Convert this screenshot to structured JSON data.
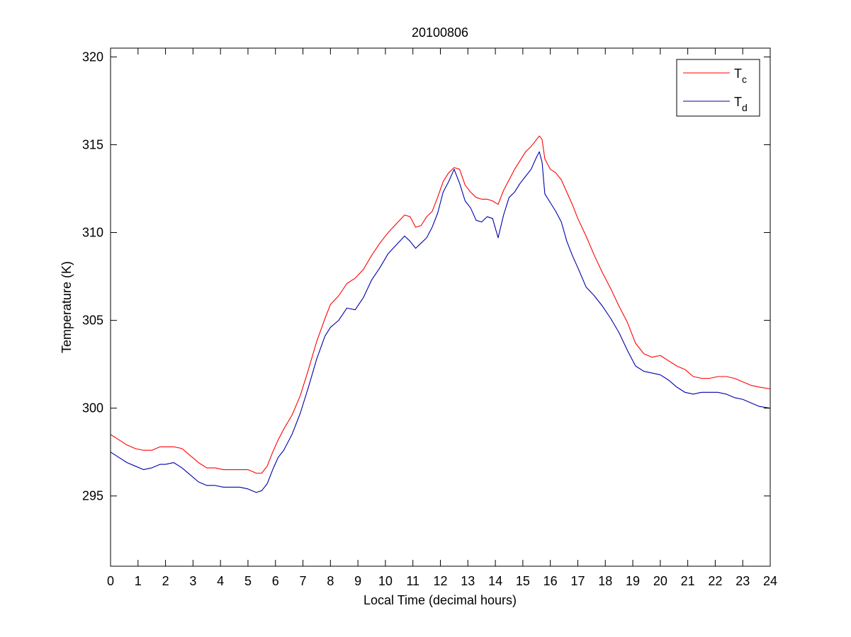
{
  "chart_data": {
    "type": "line",
    "title": "20100806",
    "xlabel": "Local Time (decimal hours)",
    "ylabel": "Temperature (K)",
    "xlim": [
      0,
      24
    ],
    "ylim": [
      291,
      320.5
    ],
    "xticks": [
      0,
      1,
      2,
      3,
      4,
      5,
      6,
      7,
      8,
      9,
      10,
      11,
      12,
      13,
      14,
      15,
      16,
      17,
      18,
      19,
      20,
      21,
      22,
      23,
      24
    ],
    "yticks": [
      295,
      300,
      305,
      310,
      315,
      320
    ],
    "grid": false,
    "legend": "top-right",
    "series": [
      {
        "name": "T",
        "subscript": "c",
        "color": "#ff0000",
        "x": [
          0,
          0.3,
          0.6,
          0.9,
          1.2,
          1.5,
          1.8,
          2.0,
          2.3,
          2.6,
          2.9,
          3.2,
          3.5,
          3.8,
          4.1,
          4.4,
          4.7,
          5.0,
          5.3,
          5.5,
          5.7,
          5.9,
          6.1,
          6.3,
          6.6,
          6.9,
          7.2,
          7.5,
          7.8,
          8.0,
          8.3,
          8.6,
          8.9,
          9.2,
          9.5,
          9.8,
          10.1,
          10.4,
          10.7,
          10.9,
          11.1,
          11.3,
          11.5,
          11.7,
          11.9,
          12.1,
          12.3,
          12.5,
          12.7,
          12.9,
          13.1,
          13.3,
          13.5,
          13.7,
          13.9,
          14.1,
          14.3,
          14.5,
          14.7,
          14.9,
          15.1,
          15.3,
          15.5,
          15.6,
          15.7,
          15.8,
          16.0,
          16.2,
          16.4,
          16.6,
          16.8,
          17.0,
          17.3,
          17.6,
          17.9,
          18.2,
          18.5,
          18.8,
          19.1,
          19.4,
          19.7,
          20.0,
          20.3,
          20.6,
          20.9,
          21.2,
          21.5,
          21.8,
          22.1,
          22.4,
          22.7,
          23.0,
          23.3,
          23.6,
          24.0
        ],
        "y": [
          298.5,
          298.2,
          297.9,
          297.7,
          297.6,
          297.6,
          297.8,
          297.8,
          297.8,
          297.7,
          297.3,
          296.9,
          296.6,
          296.6,
          296.5,
          296.5,
          296.5,
          296.5,
          296.3,
          296.3,
          296.7,
          297.5,
          298.2,
          298.8,
          299.6,
          300.7,
          302.2,
          303.8,
          305.1,
          305.9,
          306.4,
          307.1,
          307.4,
          307.9,
          308.7,
          309.4,
          310.0,
          310.5,
          311.0,
          310.9,
          310.3,
          310.4,
          310.9,
          311.2,
          312.0,
          312.9,
          313.4,
          313.7,
          313.6,
          312.7,
          312.3,
          312.0,
          311.9,
          311.9,
          311.8,
          311.6,
          312.4,
          313.0,
          313.6,
          314.1,
          314.6,
          314.9,
          315.3,
          315.5,
          315.3,
          314.2,
          313.6,
          313.4,
          313.0,
          312.3,
          311.6,
          310.8,
          309.8,
          308.7,
          307.7,
          306.8,
          305.8,
          304.9,
          303.7,
          303.1,
          302.9,
          303.0,
          302.7,
          302.4,
          302.2,
          301.8,
          301.7,
          301.7,
          301.8,
          301.8,
          301.7,
          301.5,
          301.3,
          301.2,
          301.1
        ]
      },
      {
        "name": "T",
        "subscript": "d",
        "color": "#0000aa",
        "x": [
          0,
          0.3,
          0.6,
          0.9,
          1.2,
          1.5,
          1.8,
          2.0,
          2.3,
          2.6,
          2.9,
          3.2,
          3.5,
          3.8,
          4.1,
          4.4,
          4.7,
          5.0,
          5.3,
          5.5,
          5.7,
          5.9,
          6.1,
          6.3,
          6.6,
          6.9,
          7.2,
          7.5,
          7.8,
          8.0,
          8.3,
          8.6,
          8.9,
          9.2,
          9.5,
          9.8,
          10.1,
          10.4,
          10.7,
          10.9,
          11.1,
          11.3,
          11.5,
          11.7,
          11.9,
          12.1,
          12.3,
          12.5,
          12.7,
          12.9,
          13.1,
          13.3,
          13.5,
          13.7,
          13.9,
          14.1,
          14.3,
          14.5,
          14.7,
          14.9,
          15.1,
          15.3,
          15.5,
          15.6,
          15.7,
          15.8,
          16.0,
          16.2,
          16.4,
          16.6,
          16.8,
          17.0,
          17.3,
          17.6,
          17.9,
          18.2,
          18.5,
          18.8,
          19.1,
          19.4,
          19.7,
          20.0,
          20.3,
          20.6,
          20.9,
          21.2,
          21.5,
          21.8,
          22.1,
          22.4,
          22.7,
          23.0,
          23.3,
          23.6,
          24.0
        ],
        "y": [
          297.5,
          297.2,
          296.9,
          296.7,
          296.5,
          296.6,
          296.8,
          296.8,
          296.9,
          296.6,
          296.2,
          295.8,
          295.6,
          295.6,
          295.5,
          295.5,
          295.5,
          295.4,
          295.2,
          295.3,
          295.7,
          296.5,
          297.2,
          297.6,
          298.5,
          299.7,
          301.2,
          302.8,
          304.1,
          304.6,
          305.0,
          305.7,
          305.6,
          306.3,
          307.3,
          308.0,
          308.8,
          309.3,
          309.8,
          309.5,
          309.1,
          309.4,
          309.7,
          310.3,
          311.1,
          312.3,
          312.9,
          313.6,
          312.8,
          311.8,
          311.4,
          310.7,
          310.6,
          310.9,
          310.8,
          309.7,
          311.0,
          312.0,
          312.3,
          312.8,
          313.2,
          313.6,
          314.3,
          314.6,
          314.0,
          312.2,
          311.7,
          311.2,
          310.6,
          309.5,
          308.7,
          308.0,
          306.9,
          306.4,
          305.8,
          305.1,
          304.3,
          303.3,
          302.4,
          302.1,
          302.0,
          301.9,
          301.6,
          301.2,
          300.9,
          300.8,
          300.9,
          300.9,
          300.9,
          300.8,
          300.6,
          300.5,
          300.3,
          300.1,
          300.0
        ]
      }
    ]
  }
}
